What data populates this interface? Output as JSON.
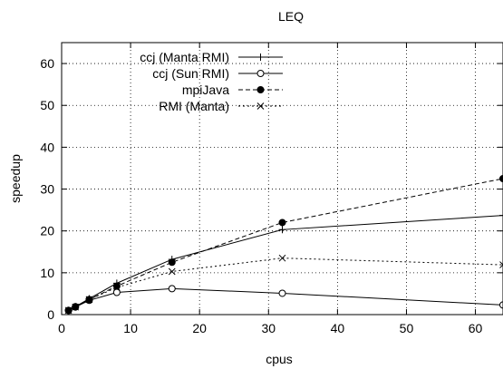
{
  "chart_data": {
    "type": "line",
    "title": "LEQ",
    "xlabel": "cpus",
    "ylabel": "speedup",
    "xlim": [
      0,
      64
    ],
    "ylim": [
      0,
      65
    ],
    "xticks": [
      0,
      10,
      20,
      30,
      40,
      50,
      60
    ],
    "yticks": [
      0,
      10,
      20,
      30,
      40,
      50,
      60
    ],
    "grid": true,
    "legend_position": "top-left",
    "series": [
      {
        "name": "ccj (Manta RMI)",
        "marker": "plus",
        "line": "solid",
        "x": [
          1,
          2,
          4,
          8,
          16,
          32,
          64
        ],
        "y": [
          1.0,
          1.9,
          3.8,
          7.5,
          13.2,
          20.3,
          23.7
        ]
      },
      {
        "name": "ccj (Sun RMI)",
        "marker": "circle-open",
        "line": "solid",
        "x": [
          1,
          2,
          4,
          8,
          16,
          32,
          64
        ],
        "y": [
          1.0,
          1.8,
          3.4,
          5.3,
          6.2,
          5.1,
          2.3
        ]
      },
      {
        "name": "mpiJava",
        "marker": "circle-filled",
        "line": "dashed",
        "x": [
          1,
          2,
          4,
          8,
          16,
          32,
          64
        ],
        "y": [
          1.0,
          1.9,
          3.6,
          6.8,
          12.5,
          22.0,
          32.5
        ]
      },
      {
        "name": "RMI (Manta)",
        "marker": "cross",
        "line": "dotted",
        "x": [
          1,
          2,
          4,
          8,
          16,
          32,
          64
        ],
        "y": [
          1.0,
          1.8,
          3.6,
          6.5,
          10.3,
          13.5,
          11.9
        ]
      }
    ]
  }
}
